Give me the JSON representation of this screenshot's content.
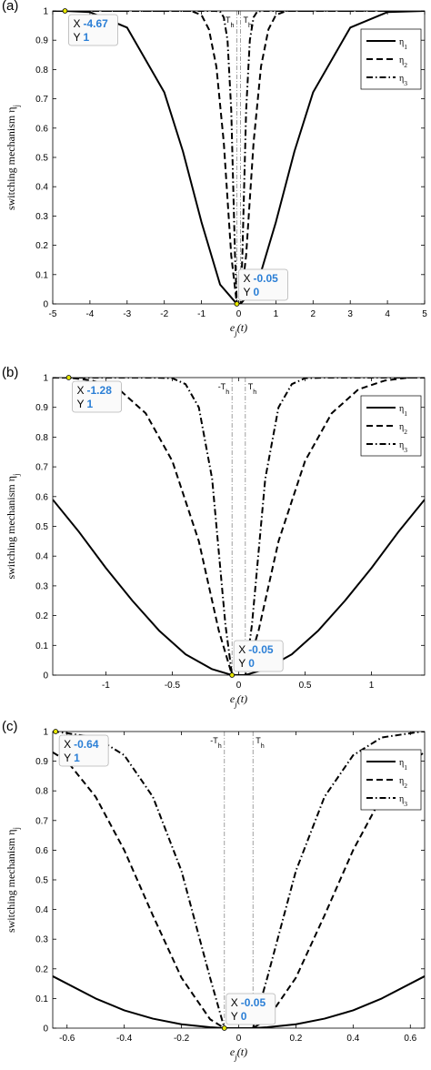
{
  "chart_data": [
    {
      "type": "line",
      "panel_label": "(a)",
      "xlim": [
        -5,
        5
      ],
      "ylim": [
        0,
        1
      ],
      "xticks": [
        "-5",
        "-4",
        "-3",
        "-2",
        "-1",
        "0",
        "1",
        "2",
        "3",
        "4",
        "5"
      ],
      "yticks": [
        "0",
        "0.1",
        "0.2",
        "0.3",
        "0.4",
        "0.5",
        "0.6",
        "0.7",
        "0.8",
        "0.9",
        "1"
      ],
      "xlabel": "e_j(t)",
      "ylabel": "switching mechanism η_j",
      "grid": false,
      "legend_position": "top-right",
      "threshold_labels": [
        "-T_h",
        "T_h"
      ],
      "threshold_x": [
        -0.05,
        0.05
      ],
      "series": [
        {
          "name": "η1",
          "style": "solid",
          "x": [
            -5,
            -4.67,
            -4,
            -3,
            -2,
            -1.5,
            -1,
            -0.5,
            -0.05,
            0,
            0.05,
            0.5,
            1,
            1.5,
            2,
            3,
            4,
            5
          ],
          "y": [
            1,
            1,
            0.996,
            0.943,
            0.722,
            0.521,
            0.279,
            0.066,
            0,
            0,
            0,
            0.066,
            0.279,
            0.521,
            0.722,
            0.943,
            0.996,
            1
          ]
        },
        {
          "name": "η2",
          "style": "dashed",
          "x": [
            -5,
            -1.5,
            -1.28,
            -1,
            -0.8,
            -0.6,
            -0.4,
            -0.2,
            -0.05,
            0,
            0.05,
            0.2,
            0.4,
            0.6,
            0.8,
            1,
            1.28,
            1.5,
            5
          ],
          "y": [
            1,
            1,
            1,
            0.986,
            0.937,
            0.81,
            0.55,
            0.165,
            0,
            0,
            0,
            0.165,
            0.55,
            0.81,
            0.937,
            0.986,
            1,
            1,
            1
          ]
        },
        {
          "name": "η3",
          "style": "dashdot",
          "x": [
            -5,
            -0.64,
            -0.5,
            -0.4,
            -0.3,
            -0.2,
            -0.1,
            -0.05,
            0,
            0.05,
            0.1,
            0.2,
            0.3,
            0.4,
            0.5,
            0.64,
            5
          ],
          "y": [
            1,
            1,
            0.998,
            0.978,
            0.9,
            0.66,
            0.17,
            0,
            0,
            0,
            0.17,
            0.66,
            0.9,
            0.978,
            0.998,
            1,
            1
          ]
        }
      ],
      "datatips": [
        {
          "x": -4.67,
          "y": 1,
          "x_label": "X",
          "x_value": "-4.67",
          "y_label": "Y",
          "y_value": "1"
        },
        {
          "x": -0.05,
          "y": 0,
          "x_label": "X",
          "x_value": "-0.05",
          "y_label": "Y",
          "y_value": "0"
        }
      ]
    },
    {
      "type": "line",
      "panel_label": "(b)",
      "xlim": [
        -1.4,
        1.4
      ],
      "ylim": [
        0,
        1
      ],
      "xticks": [
        "-1",
        "-0.5",
        "0",
        "0.5",
        "1"
      ],
      "xtick_values": [
        -1,
        -0.5,
        0,
        0.5,
        1
      ],
      "yticks": [
        "0",
        "0.1",
        "0.2",
        "0.3",
        "0.4",
        "0.5",
        "0.6",
        "0.7",
        "0.8",
        "0.9",
        "1"
      ],
      "xlabel": "e_j(t)",
      "ylabel": "switching mechanism η_j",
      "grid": false,
      "legend_position": "top-right",
      "threshold_labels": [
        "-T_h",
        "T_h"
      ],
      "threshold_x": [
        -0.05,
        0.05
      ],
      "series": [
        {
          "name": "η1",
          "style": "solid",
          "x": [
            -1.4,
            -1.2,
            -1,
            -0.8,
            -0.6,
            -0.4,
            -0.2,
            -0.05,
            0,
            0.05,
            0.2,
            0.4,
            0.6,
            0.8,
            1,
            1.2,
            1.4
          ],
          "y": [
            0.59,
            0.48,
            0.36,
            0.25,
            0.15,
            0.07,
            0.02,
            0,
            0,
            0,
            0.02,
            0.07,
            0.15,
            0.25,
            0.36,
            0.48,
            0.59
          ]
        },
        {
          "name": "η2",
          "style": "dashed",
          "x": [
            -1.4,
            -1.28,
            -1.1,
            -0.9,
            -0.7,
            -0.5,
            -0.3,
            -0.15,
            -0.05,
            0,
            0.05,
            0.15,
            0.3,
            0.5,
            0.7,
            0.9,
            1.1,
            1.28,
            1.4
          ],
          "y": [
            1,
            1,
            0.99,
            0.96,
            0.88,
            0.72,
            0.45,
            0.15,
            0,
            0,
            0,
            0.15,
            0.45,
            0.72,
            0.88,
            0.96,
            0.99,
            1,
            1
          ]
        },
        {
          "name": "η3",
          "style": "dashdot",
          "x": [
            -1.4,
            -0.64,
            -0.5,
            -0.4,
            -0.3,
            -0.2,
            -0.1,
            -0.05,
            0,
            0.05,
            0.1,
            0.2,
            0.3,
            0.4,
            0.5,
            0.64,
            1.4
          ],
          "y": [
            1,
            1,
            0.998,
            0.978,
            0.9,
            0.66,
            0.17,
            0,
            0,
            0,
            0.17,
            0.66,
            0.9,
            0.978,
            0.998,
            1,
            1
          ]
        }
      ],
      "datatips": [
        {
          "x": -1.28,
          "y": 1,
          "x_label": "X",
          "x_value": "-1.28",
          "y_label": "Y",
          "y_value": "1"
        },
        {
          "x": -0.05,
          "y": 0,
          "x_label": "X",
          "x_value": "-0.05",
          "y_label": "Y",
          "y_value": "0"
        }
      ]
    },
    {
      "type": "line",
      "panel_label": "(c)",
      "xlim": [
        -0.65,
        0.65
      ],
      "ylim": [
        0,
        1
      ],
      "xticks": [
        "-0.6",
        "-0.4",
        "-0.2",
        "0",
        "0.2",
        "0.4",
        "0.6"
      ],
      "xtick_values": [
        -0.6,
        -0.4,
        -0.2,
        0,
        0.2,
        0.4,
        0.6
      ],
      "yticks": [
        "0",
        "0.1",
        "0.2",
        "0.3",
        "0.4",
        "0.5",
        "0.6",
        "0.7",
        "0.8",
        "0.9",
        "1"
      ],
      "xlabel": "e_j(t)",
      "ylabel": "switching mechanism η_j",
      "grid": false,
      "legend_position": "top-right",
      "threshold_labels": [
        "-T_h",
        "T_h"
      ],
      "threshold_x": [
        -0.05,
        0.05
      ],
      "series": [
        {
          "name": "η1",
          "style": "solid",
          "x": [
            -0.65,
            -0.5,
            -0.4,
            -0.3,
            -0.2,
            -0.1,
            -0.05,
            0,
            0.05,
            0.1,
            0.2,
            0.3,
            0.4,
            0.5,
            0.65
          ],
          "y": [
            0.175,
            0.1,
            0.06,
            0.032,
            0.013,
            0.003,
            0,
            0,
            0,
            0.003,
            0.013,
            0.032,
            0.06,
            0.1,
            0.175
          ]
        },
        {
          "name": "η2",
          "style": "dashed",
          "x": [
            -0.65,
            -0.6,
            -0.5,
            -0.4,
            -0.3,
            -0.2,
            -0.1,
            -0.05,
            0,
            0.05,
            0.1,
            0.2,
            0.3,
            0.4,
            0.5,
            0.6,
            0.65
          ],
          "y": [
            0.93,
            0.9,
            0.78,
            0.6,
            0.38,
            0.17,
            0.03,
            0,
            0,
            0,
            0.03,
            0.17,
            0.38,
            0.6,
            0.78,
            0.9,
            0.93
          ]
        },
        {
          "name": "η3",
          "style": "dashdot",
          "x": [
            -0.65,
            -0.64,
            -0.5,
            -0.4,
            -0.3,
            -0.2,
            -0.1,
            -0.05,
            0,
            0.05,
            0.1,
            0.2,
            0.3,
            0.4,
            0.5,
            0.64,
            0.65
          ],
          "y": [
            1,
            1,
            0.98,
            0.92,
            0.78,
            0.53,
            0.17,
            0,
            0,
            0,
            0.17,
            0.53,
            0.78,
            0.92,
            0.98,
            1,
            1
          ]
        }
      ],
      "datatips": [
        {
          "x": -0.64,
          "y": 1,
          "x_label": "X",
          "x_value": "-0.64",
          "y_label": "Y",
          "y_value": "1"
        },
        {
          "x": -0.05,
          "y": 0,
          "x_label": "X",
          "x_value": "-0.05",
          "y_label": "Y",
          "y_value": "0"
        }
      ]
    }
  ]
}
